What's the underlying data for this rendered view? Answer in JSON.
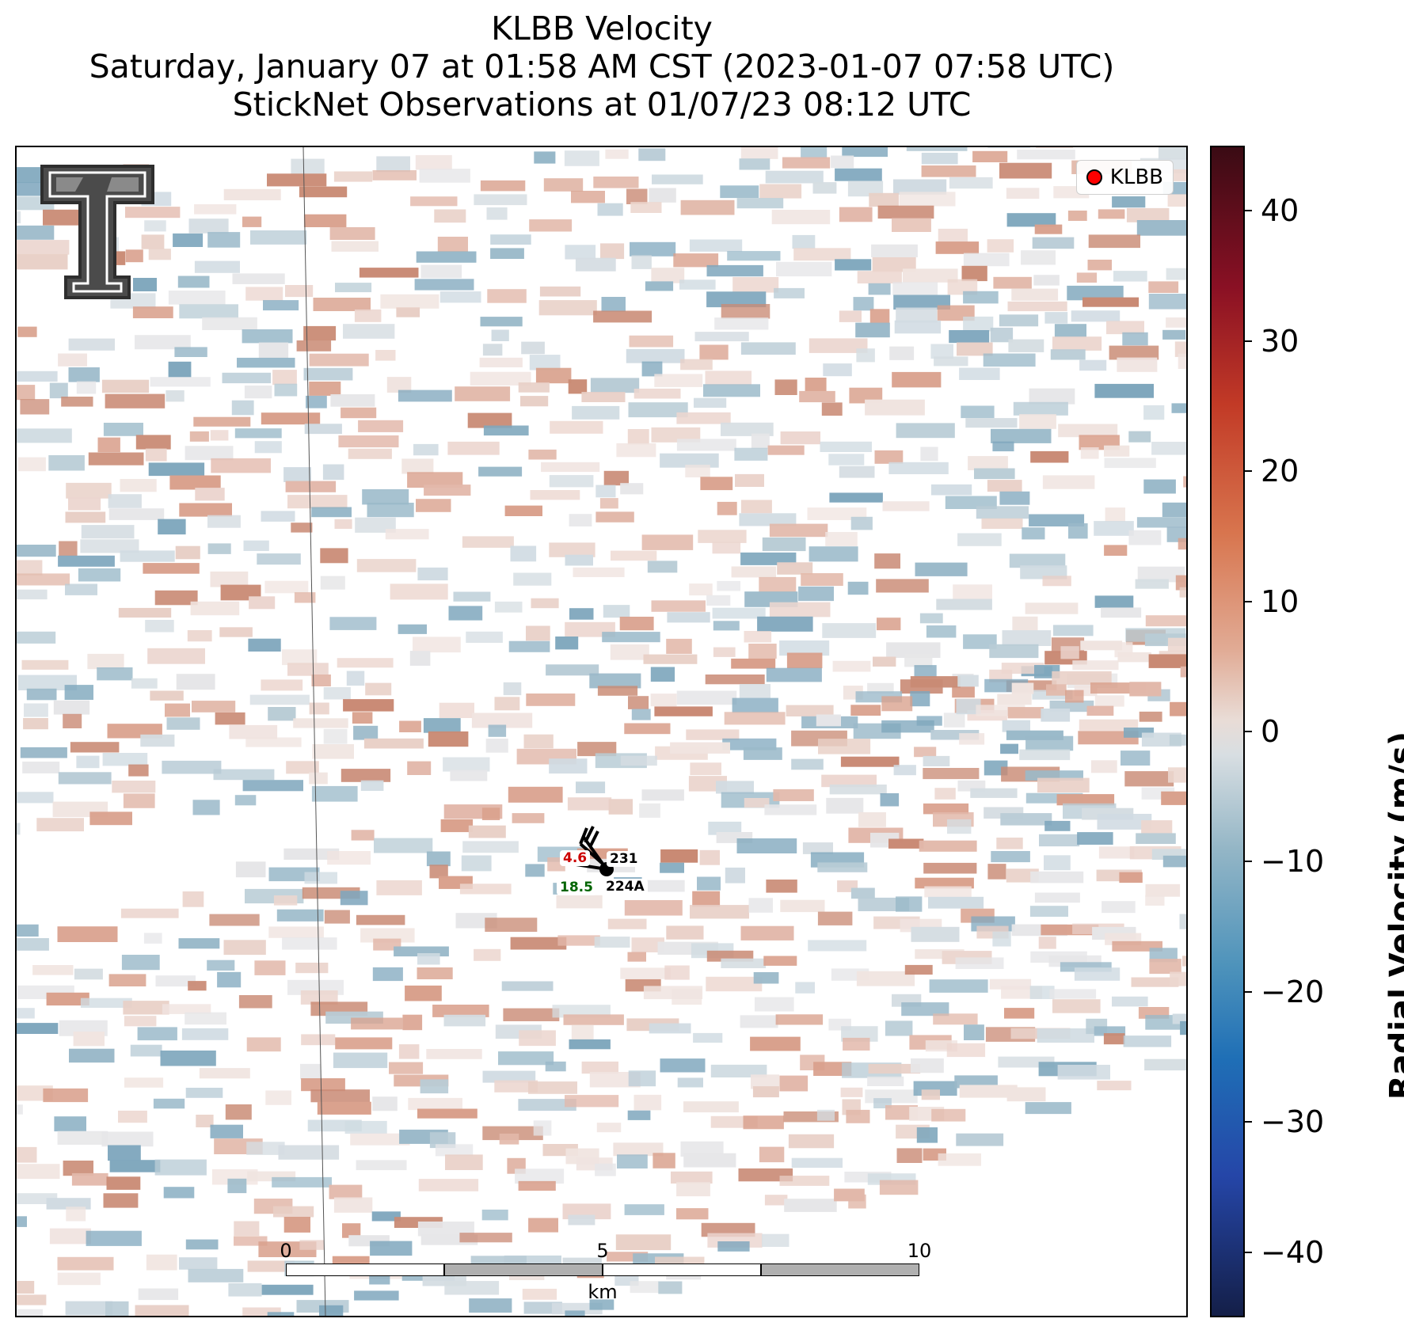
{
  "title": {
    "line1": "KLBB Velocity",
    "line2": "Saturday, January 07 at 01:58 AM CST (2023-01-07 07:58 UTC)",
    "line3": "StickNet Observations at 01/07/23 08:12 UTC"
  },
  "legend": {
    "label": "KLBB",
    "marker_color": "#ff0000"
  },
  "stations": [
    {
      "id": "231",
      "value": "4.6",
      "value_color": "#cc0000"
    },
    {
      "id": "224A",
      "value": "18.5",
      "value_color": "#006400"
    }
  ],
  "scalebar": {
    "ticks": [
      "0",
      "5",
      "10"
    ],
    "unit": "km"
  },
  "colorbar": {
    "label": "Radial Velocity (m/s)",
    "ticks": [
      "40",
      "30",
      "20",
      "10",
      "0",
      "−10",
      "−20",
      "−30",
      "−40"
    ],
    "range": [
      -45,
      45
    ],
    "colors": {
      "max": "#3a0b14",
      "zero": "#e6e3e3",
      "min": "#141f48",
      "positive": "#d8754e",
      "negative": "#4e93bb"
    }
  },
  "logo": {
    "name": "texas-tech-double-t-logo"
  }
}
